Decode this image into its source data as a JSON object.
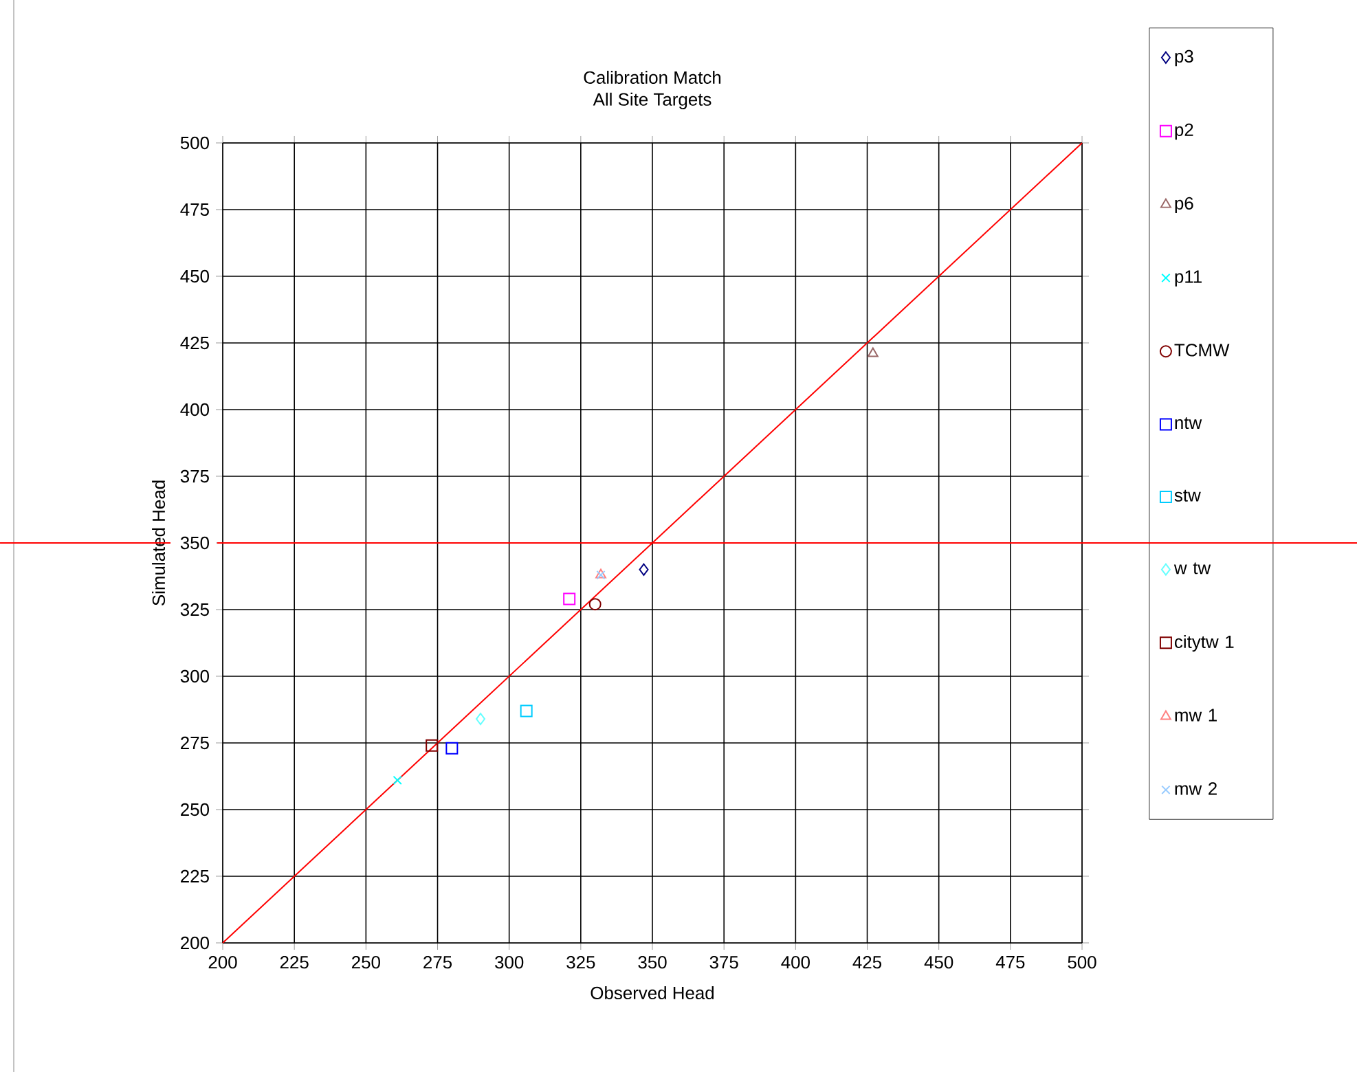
{
  "chart_data": {
    "type": "scatter",
    "title": "Calibration Match",
    "subtitle": "All Site Targets",
    "xlabel": "Observed Head",
    "ylabel": "Simulated Head",
    "xlim": [
      200,
      500
    ],
    "ylim": [
      200,
      500
    ],
    "xticks": [
      200,
      225,
      250,
      275,
      300,
      325,
      350,
      375,
      400,
      425,
      450,
      475,
      500
    ],
    "yticks": [
      200,
      225,
      250,
      275,
      300,
      325,
      350,
      375,
      400,
      425,
      450,
      475,
      500
    ],
    "grid": true,
    "legend": "right",
    "ref_lines": [
      {
        "axis": "y",
        "value": 350,
        "color": "#ff0000"
      }
    ],
    "series": [
      {
        "name": "p3",
        "color": "#000080",
        "marker": "diamond",
        "x": [
          347
        ],
        "values": [
          340
        ]
      },
      {
        "name": "p2",
        "color": "#ff00ff",
        "marker": "square",
        "x": [
          321
        ],
        "values": [
          329
        ]
      },
      {
        "name": "p6",
        "color": "#996666",
        "marker": "triangle",
        "x": [
          427
        ],
        "values": [
          421
        ]
      },
      {
        "name": "p11",
        "color": "#00ffff",
        "marker": "cross",
        "x": [
          261
        ],
        "values": [
          261
        ]
      },
      {
        "name": "TCMW",
        "color": "#800000",
        "marker": "circle",
        "x": [
          330
        ],
        "values": [
          327
        ]
      },
      {
        "name": "ntw",
        "color": "#0000ff",
        "marker": "square",
        "x": [
          280
        ],
        "values": [
          273
        ]
      },
      {
        "name": "stw",
        "color": "#00ccff",
        "marker": "square",
        "x": [
          306
        ],
        "values": [
          287
        ]
      },
      {
        "name": "w tw",
        "color": "#66ffff",
        "marker": "diamond",
        "x": [
          290
        ],
        "values": [
          284
        ]
      },
      {
        "name": "citytw 1",
        "color": "#800000",
        "marker": "square",
        "x": [
          273
        ],
        "values": [
          274
        ]
      },
      {
        "name": "mw 1",
        "color": "#ff8080",
        "marker": "triangle",
        "x": [
          332
        ],
        "values": [
          338
        ]
      },
      {
        "name": "mw 2",
        "color": "#99ccff",
        "marker": "cross",
        "x": [
          332
        ],
        "values": [
          338
        ]
      },
      {
        "type": "line",
        "color": "#ff0000",
        "x": [
          200,
          500
        ],
        "values": [
          200,
          500
        ]
      }
    ]
  }
}
